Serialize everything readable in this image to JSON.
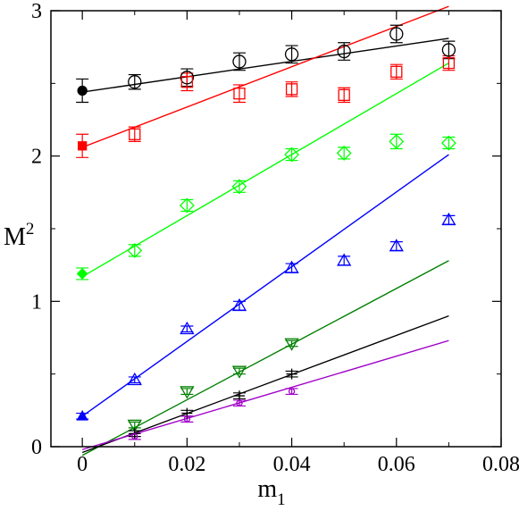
{
  "chart_data": {
    "type": "scatter",
    "title": "",
    "xlabel": {
      "base": "m",
      "sub": "1"
    },
    "ylabel": {
      "base": "M",
      "sup": "2"
    },
    "xlim": [
      -0.006,
      0.08
    ],
    "ylim": [
      0,
      3
    ],
    "xticks": [
      0,
      0.02,
      0.04,
      0.06,
      0.08
    ],
    "xtick_labels": [
      "0",
      "0.02",
      "0.04",
      "0.06",
      "0.08"
    ],
    "yticks": [
      0,
      1,
      2,
      3
    ],
    "ytick_labels": [
      "0",
      "1",
      "2",
      "3"
    ],
    "grid": false,
    "legend": "none",
    "series": [
      {
        "marker": "circle",
        "color": "#000000",
        "points": [
          [
            0.01,
            2.51,
            0.05
          ],
          [
            0.02,
            2.54,
            0.06
          ],
          [
            0.03,
            2.65,
            0.06
          ],
          [
            0.04,
            2.7,
            0.06
          ],
          [
            0.05,
            2.72,
            0.06
          ],
          [
            0.06,
            2.84,
            0.06
          ],
          [
            0.07,
            2.73,
            0.06
          ]
        ],
        "extrapolated": [
          0,
          2.45,
          0.08
        ],
        "fit": [
          [
            0,
            2.44
          ],
          [
            0.07,
            2.81
          ]
        ]
      },
      {
        "marker": "square",
        "color": "#ff0000",
        "points": [
          [
            0.01,
            2.15,
            0.05
          ],
          [
            0.02,
            2.51,
            0.06
          ],
          [
            0.03,
            2.43,
            0.06
          ],
          [
            0.04,
            2.46,
            0.05
          ],
          [
            0.05,
            2.42,
            0.05
          ],
          [
            0.06,
            2.58,
            0.05
          ],
          [
            0.07,
            2.64,
            0.05
          ]
        ],
        "extrapolated": [
          0,
          2.07,
          0.08
        ],
        "fit": [
          [
            0,
            2.06
          ],
          [
            0.07,
            3.03
          ]
        ]
      },
      {
        "marker": "diamond",
        "color": "#00ff00",
        "points": [
          [
            0.01,
            1.35,
            0.04
          ],
          [
            0.02,
            1.66,
            0.04
          ],
          [
            0.03,
            1.79,
            0.04
          ],
          [
            0.04,
            2.01,
            0.04
          ],
          [
            0.05,
            2.02,
            0.04
          ],
          [
            0.06,
            2.1,
            0.05
          ],
          [
            0.07,
            2.09,
            0.04
          ]
        ],
        "extrapolated": [
          0,
          1.19,
          0.04
        ],
        "fit": [
          [
            0,
            1.17
          ],
          [
            0.07,
            2.64
          ]
        ]
      },
      {
        "marker": "triangle-up",
        "color": "#0000ff",
        "points": [
          [
            0.01,
            0.46,
            0.02
          ],
          [
            0.02,
            0.81,
            0.02
          ],
          [
            0.03,
            0.97,
            0.03
          ],
          [
            0.04,
            1.23,
            0.03
          ],
          [
            0.05,
            1.28,
            0.03
          ],
          [
            0.06,
            1.38,
            0.03
          ],
          [
            0.07,
            1.56,
            0.03
          ]
        ],
        "extrapolated": [
          0,
          0.21,
          0.02
        ],
        "fit": [
          [
            0,
            0.21
          ],
          [
            0.07,
            2.01
          ]
        ]
      },
      {
        "marker": "triangle-down",
        "color": "#008000",
        "points": [
          [
            0.01,
            0.15,
            0.02
          ],
          [
            0.02,
            0.38,
            0.02
          ],
          [
            0.03,
            0.52,
            0.02
          ],
          [
            0.04,
            0.71,
            0.02
          ]
        ],
        "fit": [
          [
            0,
            -0.06
          ],
          [
            0.07,
            1.28
          ]
        ]
      },
      {
        "marker": "plus",
        "color": "#000000",
        "points": [
          [
            0.01,
            0.09,
            0.02
          ],
          [
            0.02,
            0.23,
            0.02
          ],
          [
            0.03,
            0.35,
            0.02
          ],
          [
            0.04,
            0.5,
            0.02
          ]
        ],
        "fit": [
          [
            0,
            -0.04
          ],
          [
            0.07,
            0.9
          ]
        ]
      },
      {
        "marker": "small-circle",
        "color": "#a000c8",
        "points": [
          [
            0.01,
            0.07,
            0.02
          ],
          [
            0.02,
            0.19,
            0.02
          ],
          [
            0.03,
            0.3,
            0.02
          ],
          [
            0.04,
            0.38,
            0.02
          ]
        ],
        "fit": [
          [
            0,
            -0.02
          ],
          [
            0.07,
            0.73
          ]
        ]
      }
    ]
  }
}
